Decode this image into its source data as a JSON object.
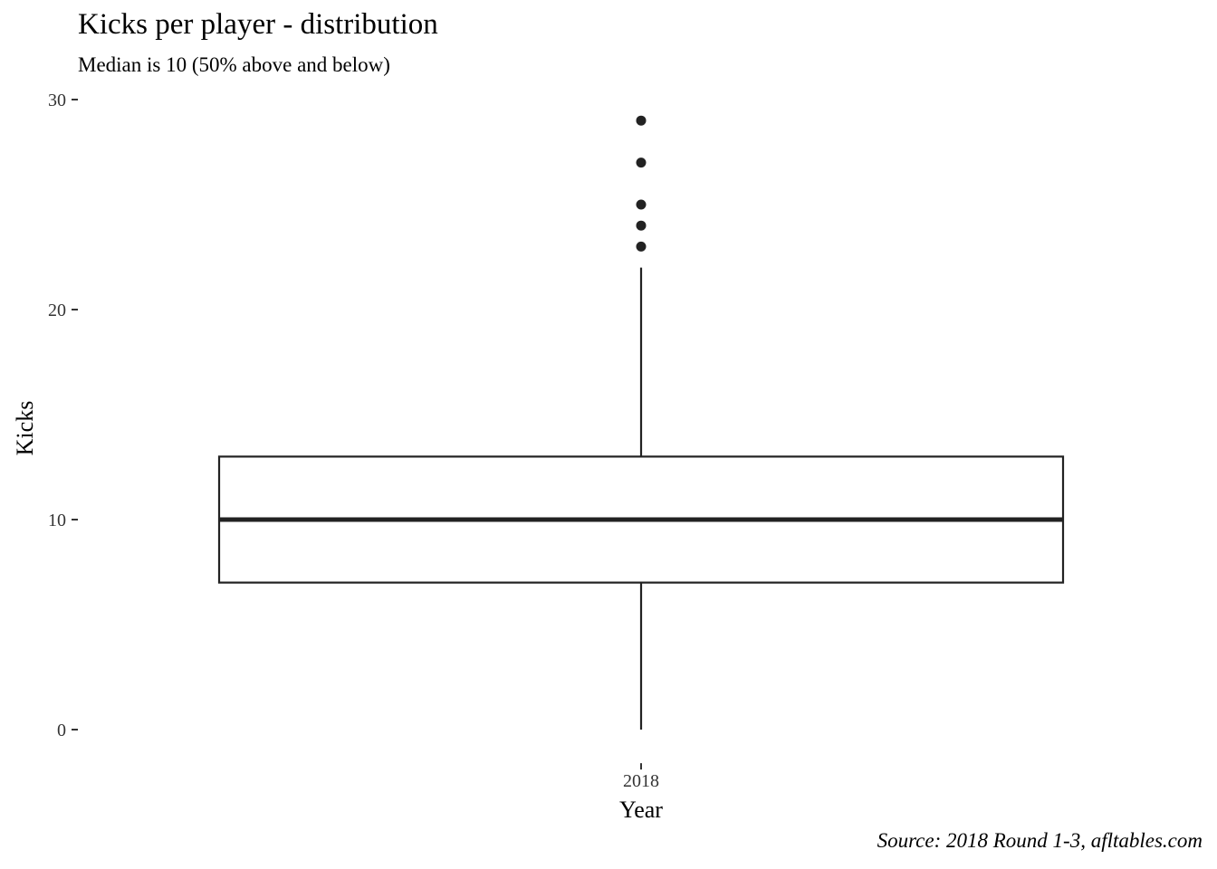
{
  "chart_data": {
    "type": "box",
    "title": "Kicks per player - distribution",
    "subtitle": "Median is 10 (50% above and below)",
    "caption": "Source: 2018 Round 1-3, afltables.com",
    "xlabel": "Year",
    "ylabel": "Kicks",
    "categories": [
      "2018"
    ],
    "boxes": [
      {
        "category": "2018",
        "min": 0,
        "q1": 7,
        "median": 10,
        "q3": 13,
        "max": 22,
        "outliers": [
          23,
          24,
          25,
          27,
          29
        ]
      }
    ],
    "yticks": [
      "0",
      "10",
      "20",
      "30"
    ],
    "ylim": [
      -1.6,
      30
    ],
    "grid": false,
    "colors": {
      "line": "#222222",
      "fill": "#ffffff",
      "outlier": "#222222"
    }
  }
}
